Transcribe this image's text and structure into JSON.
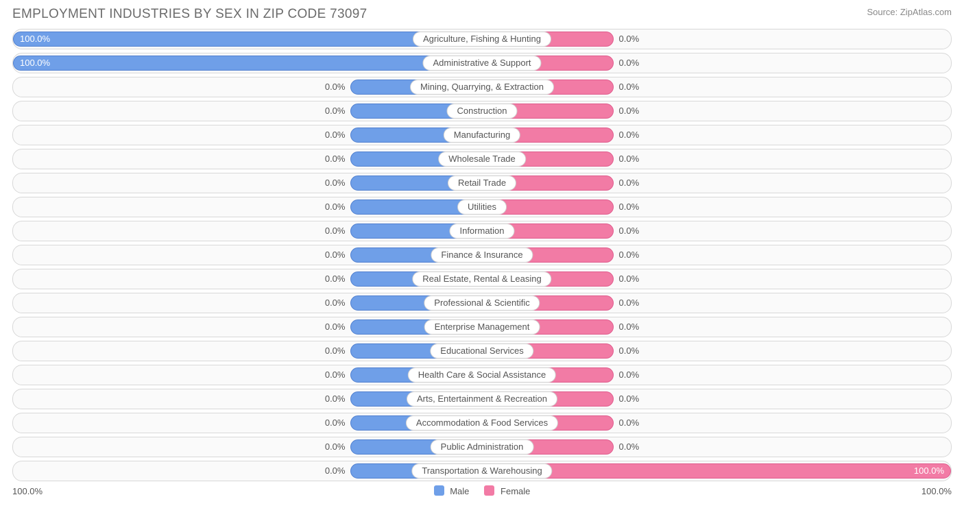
{
  "title": "EMPLOYMENT INDUSTRIES BY SEX IN ZIP CODE 73097",
  "source": "Source: ZipAtlas.com",
  "colors": {
    "male": "#6f9fe8",
    "male_border": "#4f7fd0",
    "female": "#f27ba5",
    "female_border": "#e05a8c",
    "track_bg": "#fafafa",
    "track_border": "#d8d8d8",
    "text": "#555555",
    "title_text": "#6b6b6b"
  },
  "axis": {
    "left_label": "100.0%",
    "right_label": "100.0%",
    "half_width_pct": 50
  },
  "stub_width_pct": 14,
  "legend": [
    {
      "label": "Male",
      "color": "#6f9fe8"
    },
    {
      "label": "Female",
      "color": "#f27ba5"
    }
  ],
  "rows": [
    {
      "category": "Agriculture, Fishing & Hunting",
      "male": 100.0,
      "female": 0.0
    },
    {
      "category": "Administrative & Support",
      "male": 100.0,
      "female": 0.0
    },
    {
      "category": "Mining, Quarrying, & Extraction",
      "male": 0.0,
      "female": 0.0
    },
    {
      "category": "Construction",
      "male": 0.0,
      "female": 0.0
    },
    {
      "category": "Manufacturing",
      "male": 0.0,
      "female": 0.0
    },
    {
      "category": "Wholesale Trade",
      "male": 0.0,
      "female": 0.0
    },
    {
      "category": "Retail Trade",
      "male": 0.0,
      "female": 0.0
    },
    {
      "category": "Utilities",
      "male": 0.0,
      "female": 0.0
    },
    {
      "category": "Information",
      "male": 0.0,
      "female": 0.0
    },
    {
      "category": "Finance & Insurance",
      "male": 0.0,
      "female": 0.0
    },
    {
      "category": "Real Estate, Rental & Leasing",
      "male": 0.0,
      "female": 0.0
    },
    {
      "category": "Professional & Scientific",
      "male": 0.0,
      "female": 0.0
    },
    {
      "category": "Enterprise Management",
      "male": 0.0,
      "female": 0.0
    },
    {
      "category": "Educational Services",
      "male": 0.0,
      "female": 0.0
    },
    {
      "category": "Health Care & Social Assistance",
      "male": 0.0,
      "female": 0.0
    },
    {
      "category": "Arts, Entertainment & Recreation",
      "male": 0.0,
      "female": 0.0
    },
    {
      "category": "Accommodation & Food Services",
      "male": 0.0,
      "female": 0.0
    },
    {
      "category": "Public Administration",
      "male": 0.0,
      "female": 0.0
    },
    {
      "category": "Transportation & Warehousing",
      "male": 0.0,
      "female": 100.0
    }
  ]
}
